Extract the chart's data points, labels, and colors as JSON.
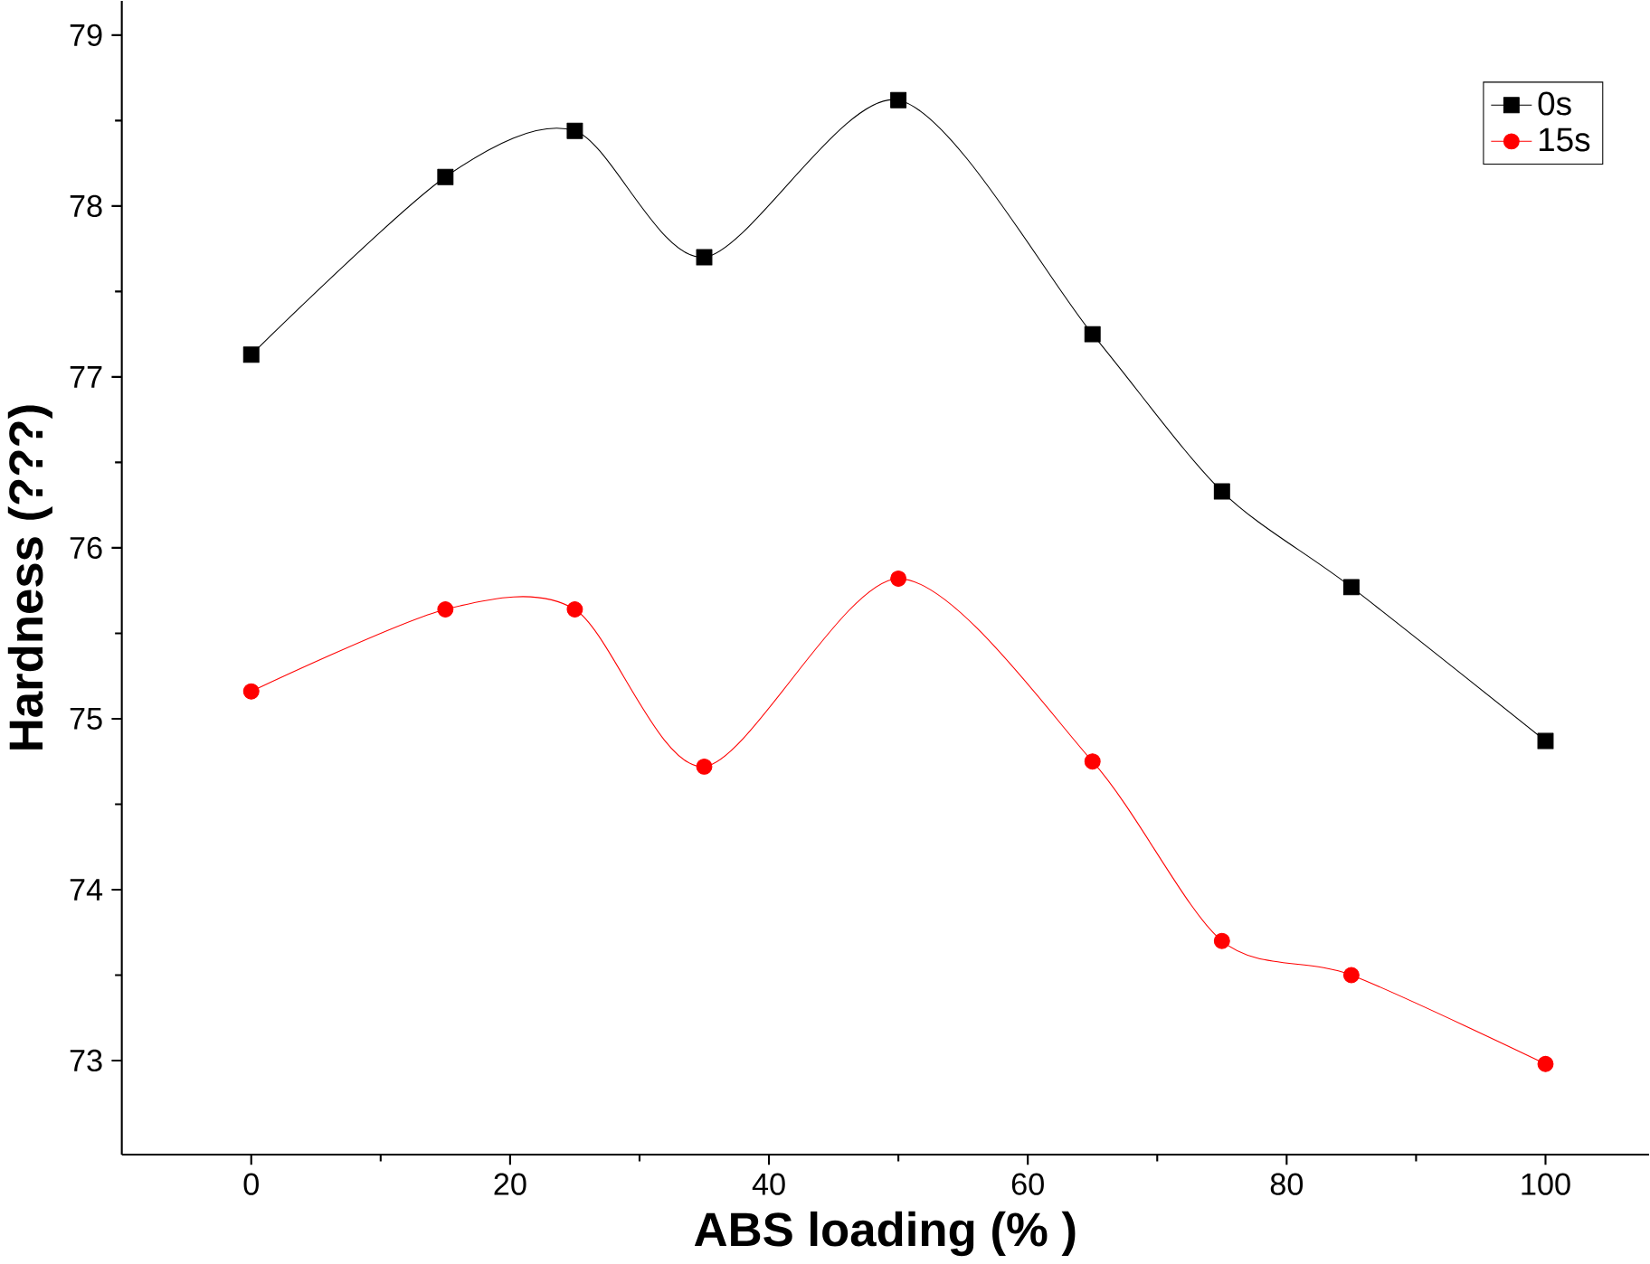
{
  "chart_data": {
    "type": "line",
    "xlabel": "ABS loading (% )",
    "ylabel": "Hardness (???)",
    "x": [
      0,
      15,
      25,
      35,
      50,
      65,
      75,
      85,
      100
    ],
    "series": [
      {
        "name": "0s",
        "color": "#000000",
        "marker": "square",
        "values": [
          77.13,
          78.17,
          78.44,
          77.7,
          78.62,
          77.25,
          76.33,
          75.77,
          74.87
        ]
      },
      {
        "name": "15s",
        "color": "#ff0000",
        "marker": "circle",
        "values": [
          75.16,
          75.64,
          75.64,
          74.72,
          75.82,
          74.75,
          73.7,
          73.5,
          72.98
        ]
      }
    ],
    "xlim": [
      -10,
      108
    ],
    "ylim": [
      72.45,
      79.2
    ],
    "xticks": [
      0,
      20,
      40,
      60,
      80,
      100
    ],
    "yticks": [
      73,
      74,
      75,
      76,
      77,
      78,
      79
    ],
    "legend": "top right",
    "grid": false,
    "line_style": "solid"
  }
}
